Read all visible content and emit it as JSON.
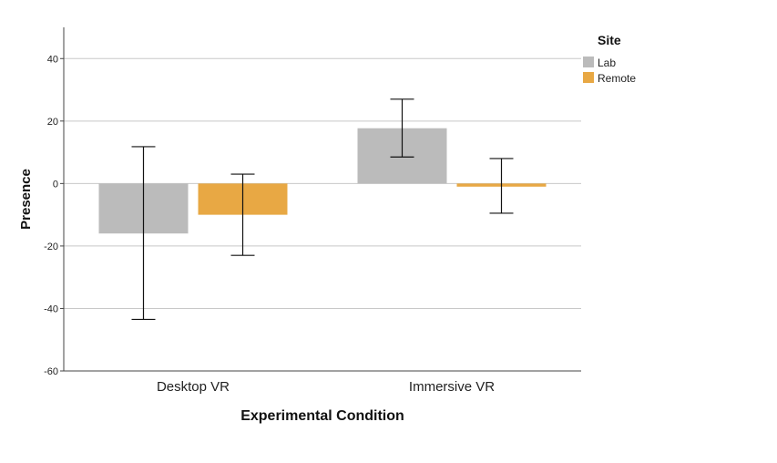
{
  "chart_data": {
    "type": "bar",
    "xlabel": "Experimental Condition",
    "ylabel": "Presence",
    "categories": [
      "Desktop VR",
      "Immersive VR"
    ],
    "ylim": [
      -60,
      50
    ],
    "yticks": [
      -60,
      -40,
      -20,
      0,
      20,
      40
    ],
    "grid": true,
    "legend": {
      "title": "Site",
      "placement": "top-right"
    },
    "error_bars": true,
    "series": [
      {
        "name": "Lab",
        "color": "#bbbbbb",
        "values": [
          -16,
          17.7
        ],
        "error_low": [
          -43.5,
          8.5
        ],
        "error_high": [
          11.8,
          27
        ]
      },
      {
        "name": "Remote",
        "color": "#e8a844",
        "values": [
          -10,
          -1
        ],
        "error_low": [
          -23,
          -9.5
        ],
        "error_high": [
          3,
          8
        ]
      }
    ]
  }
}
